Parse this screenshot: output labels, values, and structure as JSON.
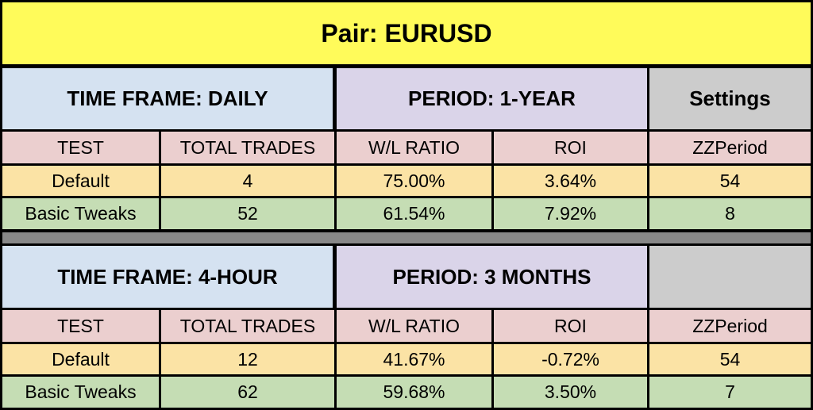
{
  "title": "Pair:  EURUSD",
  "section1": {
    "time_frame": "TIME FRAME:  DAILY",
    "period": "PERIOD: 1-YEAR",
    "settings": "Settings",
    "columns": [
      "TEST",
      "TOTAL TRADES",
      "W/L RATIO",
      "ROI",
      "ZZPeriod"
    ],
    "rows": [
      [
        "Default",
        "4",
        "75.00%",
        "3.64%",
        "54"
      ],
      [
        "Basic Tweaks",
        "52",
        "61.54%",
        "7.92%",
        "8"
      ]
    ]
  },
  "section2": {
    "time_frame": "TIME FRAME:  4-HOUR",
    "period": "PERIOD: 3 MONTHS",
    "settings": "",
    "columns": [
      "TEST",
      "TOTAL TRADES",
      "W/L RATIO",
      "ROI",
      "ZZPeriod"
    ],
    "rows": [
      [
        "Default",
        "12",
        "41.67%",
        "-0.72%",
        "54"
      ],
      [
        "Basic Tweaks",
        "62",
        "59.68%",
        "3.50%",
        "7"
      ]
    ]
  },
  "colors": {
    "title_bg": "#FFFB5A",
    "time_frame_bg": "#D5E2F1",
    "period_bg": "#DAD4E9",
    "settings_bg": "#CCCCCC",
    "column_header_bg": "#EBCFCF",
    "default_row_bg": "#FBE3A5",
    "tweaks_row_bg": "#C5DDB4",
    "separator_bg": "#888888"
  }
}
